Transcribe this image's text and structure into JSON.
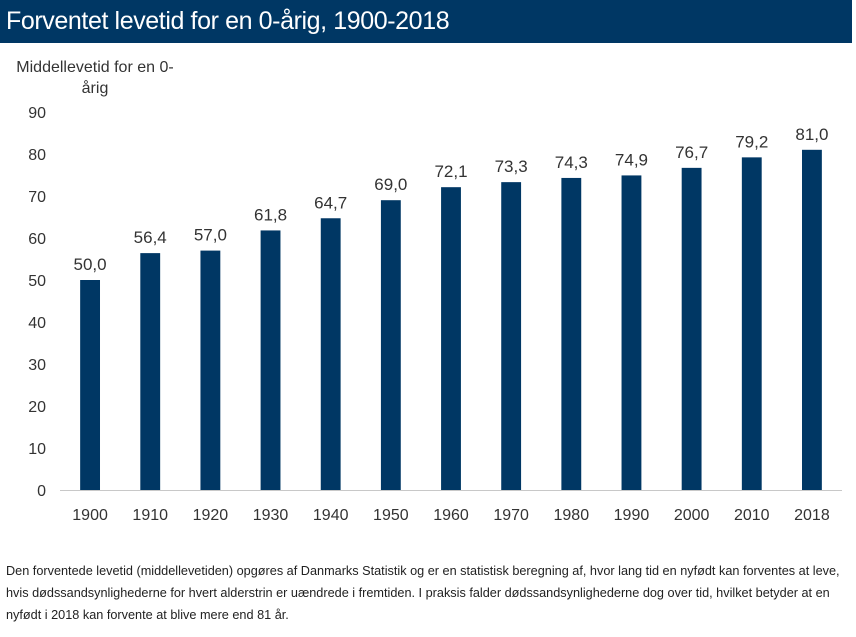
{
  "title": "Forventet levetid for en 0-årig, 1900-2018",
  "colors": {
    "title_bg": "#003764",
    "title_fg": "#ffffff",
    "bar": "#003764",
    "axis": "#c8c8c8",
    "text": "#333333"
  },
  "chart_data": {
    "type": "bar",
    "title": "",
    "ylabel": "Middellevetid for en 0-årig",
    "xlabel": "",
    "ylim": [
      0,
      90
    ],
    "yticks": [
      0,
      10,
      20,
      30,
      40,
      50,
      60,
      70,
      80,
      90
    ],
    "grid": false,
    "legend": "none",
    "categories": [
      "1900",
      "1910",
      "1920",
      "1930",
      "1940",
      "1950",
      "1960",
      "1970",
      "1980",
      "1990",
      "2000",
      "2010",
      "2018"
    ],
    "values": [
      50.0,
      56.4,
      57.0,
      61.8,
      64.7,
      69.0,
      72.1,
      73.3,
      74.3,
      74.9,
      76.7,
      79.2,
      81.0
    ],
    "data_labels": [
      "50,0",
      "56,4",
      "57,0",
      "61,8",
      "64,7",
      "69,0",
      "72,1",
      "73,3",
      "74,3",
      "74,9",
      "76,7",
      "79,2",
      "81,0"
    ]
  },
  "footnote": "Den forventede levetid (middellevetiden) opgøres af Danmarks Statistik og er en statistisk beregning af, hvor lang tid en nyfødt kan forventes at leve, hvis dødssandsynlighederne for hvert alderstrin er uændrede i fremtiden. I praksis falder dødssandsynlighederne dog over tid, hvilket betyder at en nyfødt i 2018 kan forvente at blive mere end 81 år."
}
